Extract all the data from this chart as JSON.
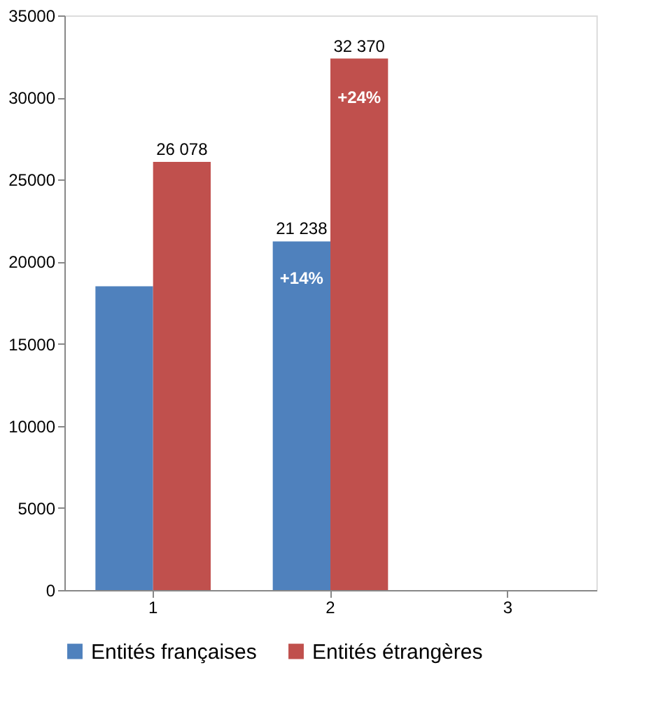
{
  "chart_data": {
    "type": "bar",
    "categories": [
      "1",
      "2",
      "3"
    ],
    "series": [
      {
        "name": "Entités françaises",
        "color": "#4f81bd",
        "values": [
          18500,
          21238,
          null
        ],
        "value_labels": [
          null,
          "21 238",
          null
        ]
      },
      {
        "name": "Entités étrangères",
        "color": "#c0504d",
        "values": [
          26078,
          32370,
          null
        ],
        "value_labels": [
          "26 078",
          "32 370",
          null
        ]
      }
    ],
    "annotations": [
      {
        "text": "+14%",
        "x": "2",
        "y": 19000
      },
      {
        "text": "+24%",
        "x": "2",
        "y": 30000
      }
    ],
    "ylim": [
      0,
      35000
    ],
    "yticks": [
      0,
      5000,
      10000,
      15000,
      20000,
      25000,
      30000,
      35000
    ],
    "grid": false,
    "legend": "bottom"
  }
}
